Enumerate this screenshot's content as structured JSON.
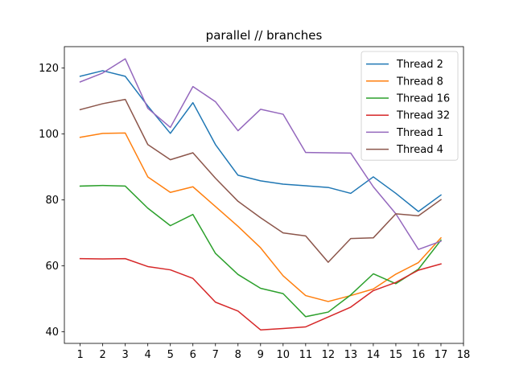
{
  "chart_data": {
    "type": "line",
    "title": "parallel // branches",
    "xlabel": "",
    "ylabel": "",
    "xlim": [
      0.3,
      18
    ],
    "ylim": [
      36.5,
      126.5
    ],
    "x": [
      1,
      2,
      3,
      4,
      5,
      6,
      7,
      8,
      9,
      10,
      11,
      12,
      13,
      14,
      15,
      16,
      17
    ],
    "xticks": [
      1,
      2,
      3,
      4,
      5,
      6,
      7,
      8,
      9,
      10,
      11,
      12,
      13,
      14,
      15,
      16,
      17,
      18
    ],
    "yticks": [
      40,
      60,
      80,
      100,
      120
    ],
    "legend_position": "top-right",
    "grid": false,
    "series": [
      {
        "name": "Thread 2",
        "color": "#1f77b4",
        "values": [
          117.5,
          119.2,
          117.5,
          108.5,
          100.2,
          109.5,
          96.8,
          87.5,
          85.8,
          84.8,
          84.3,
          83.8,
          82.0,
          87.0,
          82.0,
          76.5,
          81.5
        ]
      },
      {
        "name": "Thread 8",
        "color": "#ff7f0e",
        "values": [
          99.0,
          100.2,
          100.3,
          87.0,
          82.3,
          84.0,
          78.0,
          72.0,
          65.5,
          57.0,
          51.0,
          49.2,
          51.0,
          53.0,
          57.5,
          61.0,
          68.5
        ]
      },
      {
        "name": "Thread 16",
        "color": "#2ca02c",
        "values": [
          84.2,
          84.4,
          84.2,
          77.5,
          72.2,
          75.6,
          63.8,
          57.4,
          53.2,
          51.6,
          44.6,
          46.0,
          51.2,
          57.6,
          54.6,
          59.0,
          67.8
        ]
      },
      {
        "name": "Thread 32",
        "color": "#d62728",
        "values": [
          62.2,
          62.1,
          62.2,
          59.8,
          58.8,
          56.2,
          49.0,
          46.3,
          40.6,
          41.0,
          41.5,
          44.5,
          47.5,
          52.5,
          55.0,
          58.7,
          60.6
        ]
      },
      {
        "name": "Thread 1",
        "color": "#9467bd",
        "values": [
          115.8,
          118.5,
          122.8,
          107.8,
          102.0,
          114.4,
          109.8,
          101.0,
          107.5,
          106.0,
          94.4,
          94.3,
          94.2,
          84.0,
          75.8,
          65.0,
          67.5
        ]
      },
      {
        "name": "Thread 4",
        "color": "#8c564b",
        "values": [
          107.4,
          109.2,
          110.5,
          96.8,
          92.2,
          94.3,
          86.6,
          79.6,
          74.6,
          70.0,
          69.1,
          61.1,
          68.3,
          68.5,
          75.8,
          75.2,
          80.1
        ]
      }
    ]
  }
}
